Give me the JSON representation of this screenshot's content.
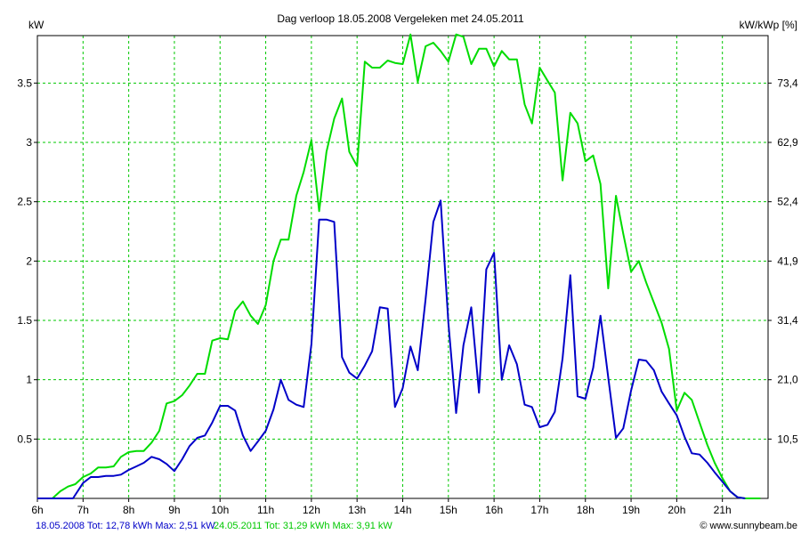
{
  "chart_data": {
    "type": "line",
    "title": "Dag  verloop 18.05.2008   Vergeleken met 24.05.2011",
    "ylabel_left": "kW",
    "ylabel_right": "kW/kWp [%]",
    "x_ticks": [
      "6h",
      "7h",
      "8h",
      "9h",
      "10h",
      "11h",
      "12h",
      "13h",
      "14h",
      "15h",
      "16h",
      "17h",
      "18h",
      "19h",
      "20h",
      "21h"
    ],
    "y_ticks_left": [
      "0.5",
      "1",
      "1.5",
      "2",
      "2.5",
      "3",
      "3.5"
    ],
    "y_ticks_right": [
      "10,5",
      "21,0",
      "31,4",
      "41,9",
      "52,4",
      "62,9",
      "73,4"
    ],
    "xlim": [
      6,
      22
    ],
    "ylim": [
      0,
      3.9
    ],
    "grid": true,
    "grid_color": "#00c800",
    "series": [
      {
        "name": "18.05.2008 Tot: 12,78 kWh Max: 2,51 kW",
        "color": "#0000c8",
        "x": [
          6.0,
          6.5,
          6.78,
          7.0,
          7.17,
          7.33,
          7.5,
          7.67,
          7.83,
          8.0,
          8.17,
          8.33,
          8.5,
          8.67,
          8.83,
          9.0,
          9.17,
          9.33,
          9.5,
          9.67,
          9.83,
          10.0,
          10.17,
          10.33,
          10.5,
          10.67,
          10.83,
          11.0,
          11.17,
          11.33,
          11.5,
          11.67,
          11.83,
          12.0,
          12.17,
          12.33,
          12.5,
          12.67,
          12.83,
          13.0,
          13.17,
          13.33,
          13.5,
          13.67,
          13.83,
          14.0,
          14.17,
          14.33,
          14.5,
          14.67,
          14.83,
          15.0,
          15.17,
          15.33,
          15.5,
          15.67,
          15.83,
          16.0,
          16.17,
          16.33,
          16.5,
          16.67,
          16.83,
          17.0,
          17.17,
          17.33,
          17.5,
          17.67,
          17.83,
          18.0,
          18.17,
          18.33,
          18.5,
          18.67,
          18.83,
          19.0,
          19.17,
          19.33,
          19.5,
          19.67,
          19.83,
          20.0,
          20.17,
          20.33,
          20.5,
          20.67,
          20.83,
          21.0,
          21.17,
          21.33,
          21.5
        ],
        "y": [
          0,
          0,
          0,
          0.13,
          0.18,
          0.18,
          0.19,
          0.19,
          0.2,
          0.24,
          0.27,
          0.3,
          0.35,
          0.33,
          0.29,
          0.23,
          0.33,
          0.44,
          0.51,
          0.53,
          0.64,
          0.78,
          0.78,
          0.74,
          0.53,
          0.4,
          0.48,
          0.57,
          0.75,
          1.0,
          0.83,
          0.79,
          0.77,
          1.3,
          2.35,
          2.35,
          2.33,
          1.19,
          1.06,
          1.01,
          1.12,
          1.24,
          1.61,
          1.6,
          0.77,
          0.93,
          1.28,
          1.08,
          1.68,
          2.33,
          2.51,
          1.48,
          0.72,
          1.29,
          1.61,
          0.89,
          1.93,
          2.07,
          1.0,
          1.29,
          1.13,
          0.79,
          0.77,
          0.6,
          0.62,
          0.73,
          1.18,
          1.88,
          0.86,
          0.84,
          1.1,
          1.54,
          1.02,
          0.51,
          0.59,
          0.91,
          1.17,
          1.16,
          1.08,
          0.9,
          0.8,
          0.7,
          0.52,
          0.38,
          0.37,
          0.3,
          0.22,
          0.14,
          0.06,
          0.01,
          0.0
        ]
      },
      {
        "name": "24.05.2011 Tot: 31,29 kWh Max: 3,91 kW",
        "color": "#00dc00",
        "x": [
          6.0,
          6.33,
          6.5,
          6.67,
          6.83,
          7.0,
          7.17,
          7.33,
          7.5,
          7.67,
          7.83,
          8.0,
          8.17,
          8.33,
          8.5,
          8.67,
          8.83,
          9.0,
          9.17,
          9.33,
          9.5,
          9.67,
          9.83,
          10.0,
          10.17,
          10.33,
          10.5,
          10.67,
          10.83,
          11.0,
          11.17,
          11.33,
          11.5,
          11.67,
          11.83,
          12.0,
          12.17,
          12.33,
          12.5,
          12.67,
          12.83,
          13.0,
          13.17,
          13.33,
          13.5,
          13.67,
          13.83,
          14.0,
          14.17,
          14.33,
          14.5,
          14.67,
          14.83,
          15.0,
          15.17,
          15.33,
          15.5,
          15.67,
          15.83,
          16.0,
          16.17,
          16.33,
          16.5,
          16.67,
          16.83,
          17.0,
          17.17,
          17.33,
          17.5,
          17.67,
          17.83,
          18.0,
          18.17,
          18.33,
          18.5,
          18.67,
          18.83,
          19.0,
          19.17,
          19.33,
          19.5,
          19.67,
          19.83,
          20.0,
          20.17,
          20.33,
          20.5,
          20.67,
          20.83,
          21.0,
          21.17,
          21.33,
          21.5,
          21.67,
          21.83
        ],
        "y": [
          0,
          0,
          0.06,
          0.1,
          0.12,
          0.18,
          0.21,
          0.26,
          0.26,
          0.27,
          0.35,
          0.39,
          0.4,
          0.4,
          0.47,
          0.57,
          0.8,
          0.82,
          0.87,
          0.95,
          1.05,
          1.05,
          1.33,
          1.35,
          1.34,
          1.58,
          1.66,
          1.54,
          1.47,
          1.63,
          2.0,
          2.18,
          2.18,
          2.55,
          2.75,
          3.02,
          2.42,
          2.92,
          3.2,
          3.37,
          2.92,
          2.8,
          3.68,
          3.63,
          3.63,
          3.69,
          3.67,
          3.66,
          3.91,
          3.51,
          3.81,
          3.84,
          3.77,
          3.68,
          3.91,
          3.89,
          3.66,
          3.79,
          3.79,
          3.64,
          3.77,
          3.7,
          3.7,
          3.32,
          3.16,
          3.63,
          3.52,
          3.42,
          2.68,
          3.25,
          3.16,
          2.84,
          2.89,
          2.65,
          1.77,
          2.55,
          2.23,
          1.91,
          2.0,
          1.82,
          1.65,
          1.48,
          1.26,
          0.74,
          0.89,
          0.83,
          0.64,
          0.45,
          0.3,
          0.17,
          0.06,
          0.01,
          0.0,
          0.0,
          0.0
        ]
      }
    ]
  },
  "footer": {
    "legend_1": "18.05.2008 Tot: 12,78 kWh Max: 2,51 kW",
    "legend_2": "24.05.2011 Tot: 31,29 kWh Max: 3,91 kW",
    "copyright": "© www.sunnybeam.be"
  }
}
